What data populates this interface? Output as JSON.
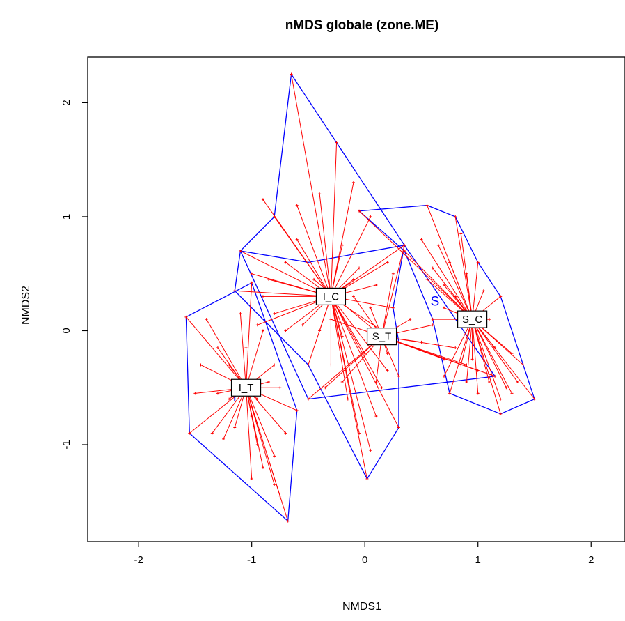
{
  "chart_data": {
    "type": "scatter",
    "title": "nMDS globale (zone.ME)",
    "xlabel": "NMDS1",
    "ylabel": "NMDS2",
    "xlim": [
      -2.45,
      2.3
    ],
    "ylim": [
      -1.85,
      2.4
    ],
    "xticks": [
      -2,
      -1,
      0,
      1,
      2
    ],
    "yticks": [
      -1,
      0,
      1,
      2
    ],
    "xtick_labels": [
      "-2",
      "-1",
      "0",
      "1",
      "2"
    ],
    "ytick_labels": [
      "-1",
      "0",
      "1",
      "2"
    ],
    "grid": false,
    "colors": {
      "spider": "#ff0000",
      "hull": "#0000ff",
      "axis": "#000000"
    },
    "groups": [
      {
        "label": "I_C",
        "centroid": [
          -0.3,
          0.3
        ],
        "hull": [
          [
            -0.65,
            2.25
          ],
          [
            -0.25,
            1.65
          ],
          [
            0.35,
            0.75
          ],
          [
            0.25,
            0.2
          ],
          [
            0.3,
            -0.1
          ],
          [
            0.3,
            -0.85
          ],
          [
            0.02,
            -1.3
          ],
          [
            -0.5,
            -0.3
          ],
          [
            -1.0,
            0.2
          ],
          [
            -1.15,
            0.35
          ],
          [
            -1.1,
            0.7
          ],
          [
            -0.8,
            1.0
          ]
        ],
        "points": [
          [
            -0.65,
            2.25
          ],
          [
            -0.25,
            1.65
          ],
          [
            -0.8,
            1.0
          ],
          [
            -1.1,
            0.7
          ],
          [
            -1.15,
            0.35
          ],
          [
            -0.9,
            1.15
          ],
          [
            -0.6,
            1.1
          ],
          [
            -0.4,
            1.2
          ],
          [
            -0.1,
            1.3
          ],
          [
            0.05,
            1.0
          ],
          [
            0.35,
            0.75
          ],
          [
            0.2,
            0.6
          ],
          [
            -1.0,
            0.5
          ],
          [
            -0.9,
            0.3
          ],
          [
            -0.8,
            0.15
          ],
          [
            -0.7,
            0.0
          ],
          [
            -0.55,
            0.05
          ],
          [
            -0.4,
            0.0
          ],
          [
            -0.1,
            0.45
          ],
          [
            0.1,
            0.4
          ],
          [
            0.25,
            0.2
          ],
          [
            0.3,
            -0.1
          ],
          [
            0.2,
            -0.35
          ],
          [
            0.15,
            -0.5
          ],
          [
            0.3,
            -0.85
          ],
          [
            0.1,
            -0.75
          ],
          [
            0.05,
            -1.05
          ],
          [
            0.02,
            -1.3
          ],
          [
            -0.05,
            -0.9
          ],
          [
            -0.15,
            -0.6
          ],
          [
            -0.3,
            -0.3
          ],
          [
            -0.5,
            -0.3
          ],
          [
            -0.7,
            0.6
          ],
          [
            -0.6,
            0.8
          ],
          [
            -0.85,
            0.45
          ],
          [
            -0.2,
            0.75
          ],
          [
            -0.05,
            0.55
          ],
          [
            0.0,
            -0.2
          ],
          [
            -0.2,
            -0.05
          ],
          [
            -0.95,
            0.05
          ]
        ]
      },
      {
        "label": "S_T",
        "centroid": [
          0.15,
          -0.05
        ],
        "hull": [
          [
            -0.5,
            0.6
          ],
          [
            0.35,
            0.75
          ],
          [
            1.15,
            -0.4
          ],
          [
            -0.5,
            -0.6
          ],
          [
            -1.1,
            0.7
          ]
        ],
        "points": [
          [
            0.35,
            0.75
          ],
          [
            1.15,
            -0.4
          ],
          [
            -0.5,
            -0.6
          ],
          [
            0.9,
            -0.3
          ],
          [
            0.7,
            -0.25
          ],
          [
            0.5,
            -0.1
          ],
          [
            0.8,
            -0.15
          ],
          [
            1.0,
            -0.35
          ],
          [
            0.3,
            -0.4
          ],
          [
            0.1,
            -0.45
          ],
          [
            -0.2,
            -0.45
          ],
          [
            -0.35,
            -0.5
          ],
          [
            0.05,
            0.2
          ],
          [
            -0.1,
            0.3
          ],
          [
            0.25,
            0.5
          ],
          [
            0.4,
            0.1
          ],
          [
            -0.3,
            0.1
          ],
          [
            0.2,
            -0.2
          ],
          [
            0.6,
            0.05
          ],
          [
            -0.45,
            0.45
          ]
        ]
      },
      {
        "label": "S_C",
        "centroid": [
          0.95,
          0.1
        ],
        "hull": [
          [
            -0.05,
            1.05
          ],
          [
            0.55,
            1.1
          ],
          [
            0.8,
            1.0
          ],
          [
            1.0,
            0.6
          ],
          [
            1.2,
            0.3
          ],
          [
            1.5,
            -0.6
          ],
          [
            1.2,
            -0.73
          ],
          [
            0.75,
            -0.55
          ],
          [
            0.6,
            0.1
          ],
          [
            0.35,
            0.7
          ]
        ],
        "points": [
          [
            -0.05,
            1.05
          ],
          [
            0.55,
            1.1
          ],
          [
            0.8,
            1.0
          ],
          [
            1.0,
            0.6
          ],
          [
            1.2,
            0.3
          ],
          [
            1.5,
            -0.6
          ],
          [
            1.2,
            -0.73
          ],
          [
            0.75,
            -0.55
          ],
          [
            0.6,
            0.1
          ],
          [
            0.35,
            0.7
          ],
          [
            0.5,
            0.8
          ],
          [
            0.65,
            0.75
          ],
          [
            0.75,
            0.6
          ],
          [
            0.9,
            0.5
          ],
          [
            0.85,
            0.85
          ],
          [
            0.7,
            0.4
          ],
          [
            0.8,
            0.3
          ],
          [
            1.1,
            0.1
          ],
          [
            1.3,
            -0.2
          ],
          [
            1.35,
            -0.45
          ],
          [
            1.25,
            -0.5
          ],
          [
            1.1,
            -0.45
          ],
          [
            1.0,
            -0.55
          ],
          [
            0.9,
            -0.45
          ],
          [
            0.85,
            -0.3
          ],
          [
            1.4,
            -0.3
          ],
          [
            1.2,
            -0.6
          ],
          [
            0.7,
            -0.4
          ],
          [
            1.05,
            0.35
          ],
          [
            0.6,
            0.55
          ],
          [
            0.55,
            0.45
          ],
          [
            1.15,
            -0.15
          ],
          [
            0.95,
            -0.25
          ],
          [
            1.3,
            -0.55
          ],
          [
            0.7,
            0.2
          ]
        ]
      },
      {
        "label": "I_T",
        "centroid": [
          -1.05,
          -0.5
        ],
        "hull": [
          [
            -1.58,
            0.12
          ],
          [
            -1.0,
            0.42
          ],
          [
            -0.6,
            -0.7
          ],
          [
            -0.68,
            -1.67
          ],
          [
            -1.55,
            -0.9
          ]
        ],
        "points": [
          [
            -1.58,
            0.12
          ],
          [
            -1.0,
            0.42
          ],
          [
            -0.6,
            -0.7
          ],
          [
            -0.68,
            -1.67
          ],
          [
            -1.55,
            -0.9
          ],
          [
            -1.4,
            0.1
          ],
          [
            -1.3,
            -0.15
          ],
          [
            -1.1,
            0.15
          ],
          [
            -0.9,
            0.0
          ],
          [
            -0.8,
            -0.3
          ],
          [
            -0.75,
            -0.5
          ],
          [
            -1.5,
            -0.55
          ],
          [
            -1.45,
            -0.3
          ],
          [
            -1.35,
            -0.9
          ],
          [
            -1.25,
            -0.95
          ],
          [
            -1.15,
            -0.85
          ],
          [
            -1.0,
            -0.75
          ],
          [
            -0.95,
            -1.0
          ],
          [
            -0.9,
            -1.2
          ],
          [
            -0.8,
            -1.1
          ],
          [
            -0.75,
            -1.45
          ],
          [
            -0.8,
            -1.35
          ],
          [
            -1.0,
            -1.3
          ],
          [
            -1.2,
            -0.6
          ],
          [
            -0.85,
            -0.45
          ],
          [
            -1.05,
            -0.15
          ],
          [
            -1.2,
            -0.3
          ],
          [
            -0.7,
            -0.9
          ],
          [
            -1.3,
            -0.55
          ],
          [
            -0.95,
            -0.6
          ]
        ]
      }
    ],
    "annotations": [
      {
        "text": "S",
        "at": [
          0.62,
          0.22
        ],
        "color": "#0000ff"
      },
      {
        "text": "I",
        "at": [
          -1.15,
          -0.62
        ],
        "color": "#0000ff"
      }
    ]
  }
}
